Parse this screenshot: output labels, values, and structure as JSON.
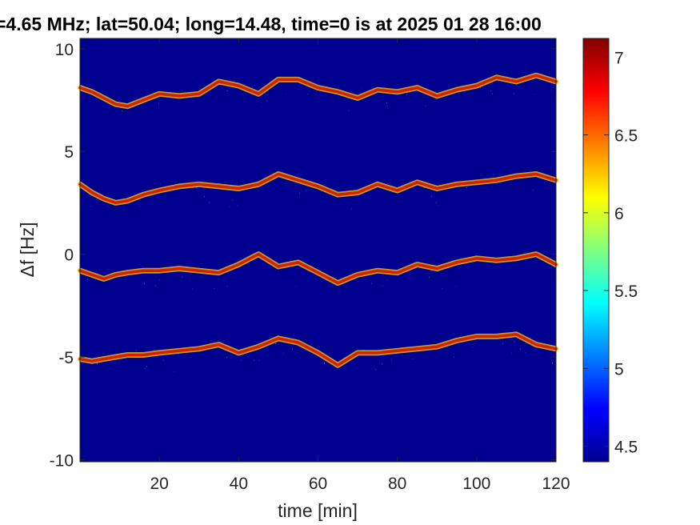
{
  "chart_data": {
    "type": "heatmap",
    "title": "=4.65 MHz;  lat=50.04; long=14.48, time=0 is at 2025 01 28 16:00",
    "xlabel": "time [min]",
    "ylabel": "Δf [Hz]",
    "xlim": [
      0,
      120
    ],
    "ylim": [
      -10.1,
      10.5
    ],
    "xticks": [
      20,
      40,
      60,
      80,
      100,
      120
    ],
    "xtick_labels": [
      "20",
      "40",
      "60",
      "80",
      "100",
      "120"
    ],
    "yticks": [
      -10,
      -5,
      0,
      5,
      10
    ],
    "ytick_labels": [
      "-10",
      "-5",
      "0",
      "5",
      "10"
    ],
    "colorbar": {
      "colormap": "jet",
      "range": [
        4.4,
        7.12
      ],
      "ticks": [
        4.5,
        5,
        5.5,
        6,
        6.5,
        7
      ],
      "tick_labels": [
        "4.5",
        "5",
        "5.5",
        "6",
        "6.5",
        "7"
      ]
    },
    "grid": false,
    "series": [
      {
        "x": [
          0,
          3,
          6,
          9,
          12,
          16,
          20,
          25,
          30,
          35,
          40,
          45,
          50,
          55,
          60,
          65,
          70,
          75,
          80,
          85,
          90,
          95,
          100,
          105,
          110,
          115,
          120
        ],
        "y": [
          8.1,
          7.9,
          7.6,
          7.3,
          7.2,
          7.5,
          7.8,
          7.7,
          7.8,
          8.4,
          8.2,
          7.8,
          8.5,
          8.5,
          8.1,
          7.9,
          7.6,
          8.0,
          7.9,
          8.1,
          7.7,
          8.0,
          8.2,
          8.6,
          8.4,
          8.7,
          8.4
        ]
      },
      {
        "x": [
          0,
          3,
          6,
          9,
          12,
          16,
          20,
          25,
          30,
          35,
          40,
          45,
          50,
          55,
          60,
          65,
          70,
          75,
          80,
          85,
          90,
          95,
          100,
          105,
          110,
          115,
          120
        ],
        "y": [
          3.4,
          3.0,
          2.7,
          2.5,
          2.6,
          2.9,
          3.1,
          3.3,
          3.4,
          3.3,
          3.2,
          3.4,
          3.9,
          3.6,
          3.3,
          2.9,
          3.0,
          3.4,
          3.1,
          3.5,
          3.2,
          3.4,
          3.5,
          3.6,
          3.8,
          3.9,
          3.6
        ]
      },
      {
        "x": [
          0,
          3,
          6,
          9,
          12,
          16,
          20,
          25,
          30,
          35,
          40,
          45,
          50,
          55,
          60,
          65,
          70,
          75,
          80,
          85,
          90,
          95,
          100,
          105,
          110,
          115,
          120
        ],
        "y": [
          -0.8,
          -1.0,
          -1.2,
          -1.0,
          -0.9,
          -0.8,
          -0.8,
          -0.7,
          -0.8,
          -0.9,
          -0.5,
          0.0,
          -0.6,
          -0.4,
          -0.9,
          -1.4,
          -1.0,
          -0.8,
          -0.9,
          -0.5,
          -0.7,
          -0.4,
          -0.2,
          -0.3,
          -0.2,
          0.0,
          -0.5
        ]
      },
      {
        "x": [
          0,
          3,
          6,
          9,
          12,
          16,
          20,
          25,
          30,
          35,
          40,
          45,
          50,
          55,
          60,
          65,
          70,
          75,
          80,
          85,
          90,
          95,
          100,
          105,
          110,
          115,
          120
        ],
        "y": [
          -5.1,
          -5.2,
          -5.1,
          -5.0,
          -4.9,
          -4.9,
          -4.8,
          -4.7,
          -4.6,
          -4.4,
          -4.8,
          -4.5,
          -4.1,
          -4.3,
          -4.8,
          -5.4,
          -4.8,
          -4.8,
          -4.7,
          -4.6,
          -4.5,
          -4.2,
          -4.0,
          -4.0,
          -3.9,
          -4.4,
          -4.6
        ]
      }
    ]
  }
}
